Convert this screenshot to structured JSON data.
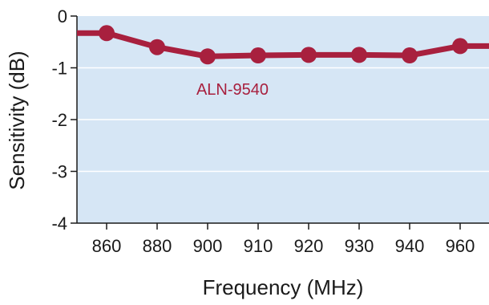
{
  "chart_data": {
    "type": "line",
    "categories": [
      "860",
      "880",
      "900",
      "910",
      "920",
      "930",
      "940",
      "960"
    ],
    "series": [
      {
        "name": "ALN-9540",
        "values": [
          -0.33,
          -0.6,
          -0.78,
          -0.76,
          -0.75,
          -0.75,
          -0.76,
          -0.58
        ],
        "edge_left": -0.33,
        "edge_right": -0.58
      }
    ],
    "title": "",
    "xlabel": "Frequency (MHz)",
    "ylabel": "Sensitivity (dB)",
    "yticks": [
      "0",
      "-1",
      "-2",
      "-3",
      "-4"
    ],
    "ylim": [
      -4,
      0
    ],
    "grid": true,
    "colors": {
      "plot_background": "#d6e6f5",
      "gridline": "#ffffff",
      "series": "#a8203e",
      "axis": "#1a1a1a"
    }
  }
}
